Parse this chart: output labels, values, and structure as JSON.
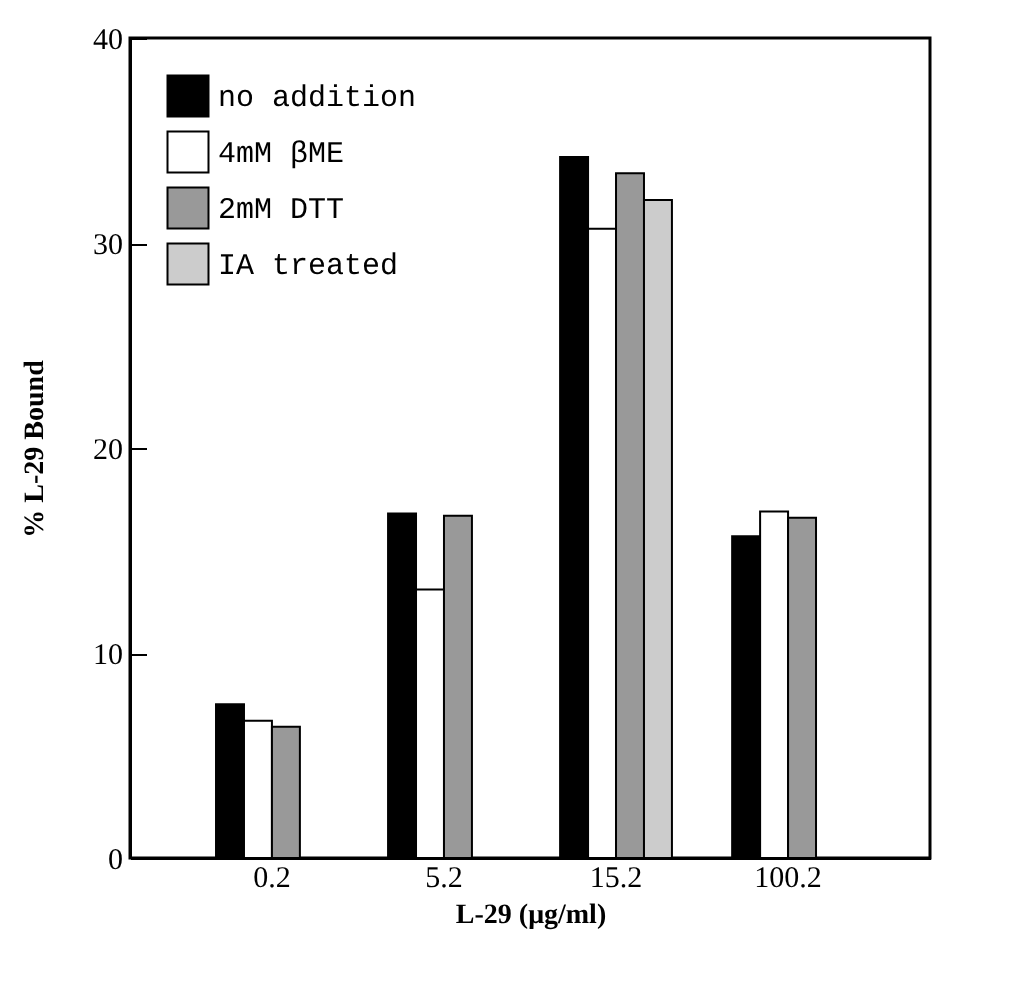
{
  "chart_data": {
    "type": "bar",
    "xlabel": "L-29 (μg/ml)",
    "ylabel": "% L-29 Bound",
    "categories": [
      "0.2",
      "5.2",
      "15.2",
      "100.2"
    ],
    "series": [
      {
        "name": "no addition",
        "color": "#000000",
        "values": [
          7.5,
          16.8,
          34.2,
          15.7
        ]
      },
      {
        "name": "4mM βME",
        "color": "#ffffff",
        "values": [
          6.7,
          13.1,
          30.7,
          16.9
        ]
      },
      {
        "name": "2mM DTT",
        "color": "#999999",
        "values": [
          6.4,
          16.7,
          33.4,
          16.6
        ]
      },
      {
        "name": "IA treated",
        "color": "#cccccc",
        "values": [
          null,
          null,
          32.1,
          null
        ]
      }
    ],
    "ylim": [
      0,
      40
    ],
    "yticks": [
      0,
      10,
      20,
      30,
      40
    ],
    "legend": "top left"
  }
}
